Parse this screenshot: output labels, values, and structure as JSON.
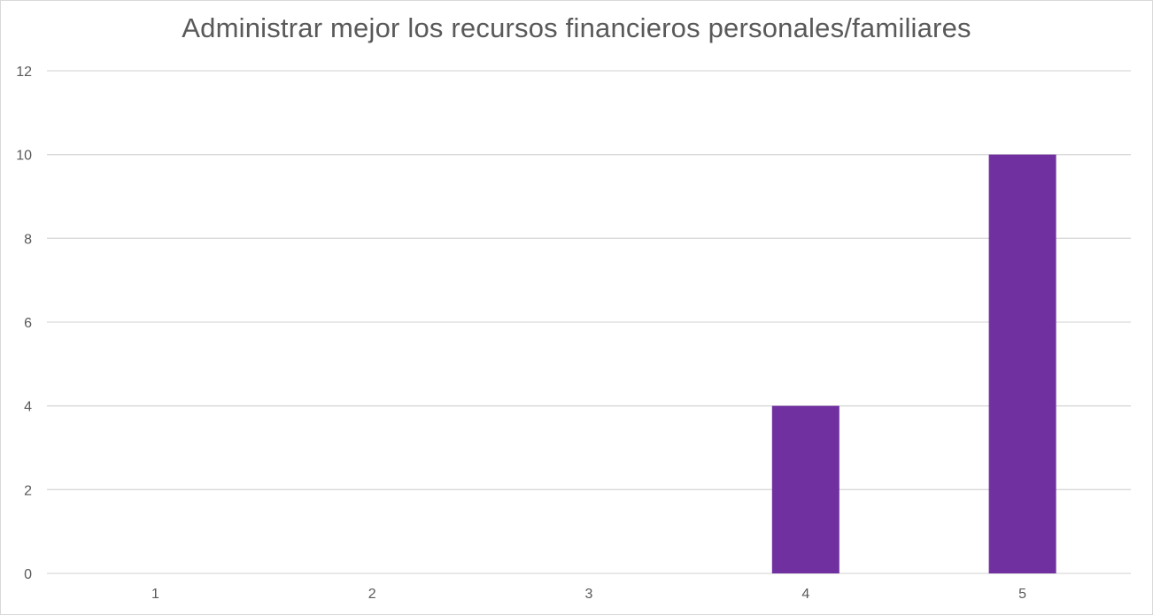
{
  "chart_data": {
    "type": "bar",
    "title": "Administrar mejor los recursos financieros personales/familiares",
    "categories": [
      "1",
      "2",
      "3",
      "4",
      "5"
    ],
    "values": [
      0,
      0,
      0,
      4,
      10
    ],
    "ylim": [
      0,
      12
    ],
    "yticks": [
      "0",
      "2",
      "4",
      "6",
      "8",
      "10",
      "12"
    ],
    "xlabel": "",
    "ylabel": "",
    "grid": true,
    "legend": "none",
    "bar_color": "#7030a0",
    "grid_color": "#d9d9d9",
    "text_color": "#595959"
  }
}
